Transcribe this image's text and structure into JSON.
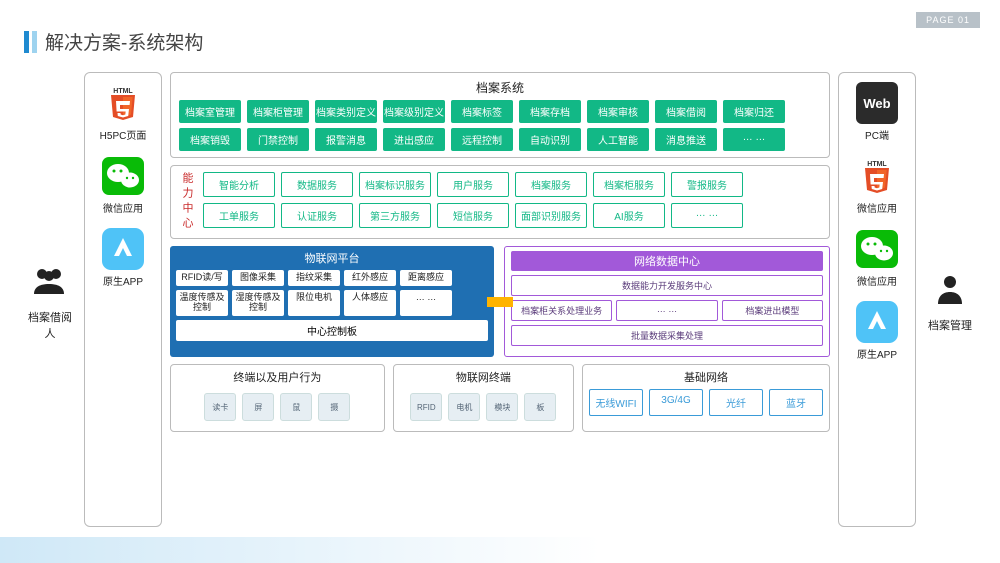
{
  "page_badge": "PAGE 01",
  "title": "解决方案-系统架构",
  "left_actor": "档案借阅人",
  "right_actor": "档案管理",
  "side_left": [
    {
      "icon": "html5",
      "label": "H5PC页面"
    },
    {
      "icon": "wechat",
      "label": "微信应用"
    },
    {
      "icon": "app",
      "label": "原生APP"
    }
  ],
  "side_right": [
    {
      "icon": "web",
      "label": "PC端"
    },
    {
      "icon": "html5",
      "label": "微信应用"
    },
    {
      "icon": "wechat",
      "label": "微信应用"
    },
    {
      "icon": "app",
      "label": "原生APP"
    }
  ],
  "archive": {
    "title": "档案系统",
    "row1": [
      "档案室管理",
      "档案柜管理",
      "档案类别定义",
      "档案级别定义",
      "档案标签",
      "档案存档",
      "档案审核",
      "档案借阅",
      "档案归还"
    ],
    "row2": [
      "档案销毁",
      "门禁控制",
      "报警消息",
      "进出感应",
      "远程控制",
      "自动识别",
      "人工智能",
      "消息推送",
      "… …"
    ]
  },
  "ability": {
    "label": "能力中心",
    "row1": [
      "智能分析",
      "数据服务",
      "档案标识服务",
      "用户服务",
      "档案服务",
      "档案柜服务",
      "警报服务"
    ],
    "row2": [
      "工单服务",
      "认证服务",
      "第三方服务",
      "短信服务",
      "面部识别服务",
      "AI服务",
      "… …"
    ]
  },
  "iot": {
    "title": "物联网平台",
    "chips": [
      "RFID读/写",
      "图像采集",
      "指纹采集",
      "红外感应",
      "距离感应",
      "温度传感及控制",
      "湿度传感及控制",
      "限位电机",
      "人体感应",
      "… …"
    ],
    "footer": "中心控制板"
  },
  "netcenter": {
    "title": "网络数据中心",
    "row1": [
      "数据能力开发服务中心"
    ],
    "row2": [
      "档案柜关系处理业务",
      "… …",
      "档案进出模型"
    ],
    "row3": [
      "批量数据采集处理"
    ]
  },
  "bottom": {
    "terminal": {
      "title": "终端以及用户行为",
      "items": [
        "读卡",
        "屏",
        "鼠",
        "摄"
      ]
    },
    "iotterm": {
      "title": "物联网终端",
      "items": [
        "RFID",
        "电机",
        "模块",
        "板"
      ]
    },
    "basenet": {
      "title": "基础网络",
      "items": [
        "无线WIFI",
        "3G/4G",
        "光纤",
        "蓝牙"
      ]
    }
  },
  "colors": {
    "green": "#12b886",
    "teal_border": "#12b886",
    "blue": "#1f6fb2",
    "purple": "#a259d9",
    "orange": "#ffb300",
    "skyblue": "#3a9bd8"
  }
}
